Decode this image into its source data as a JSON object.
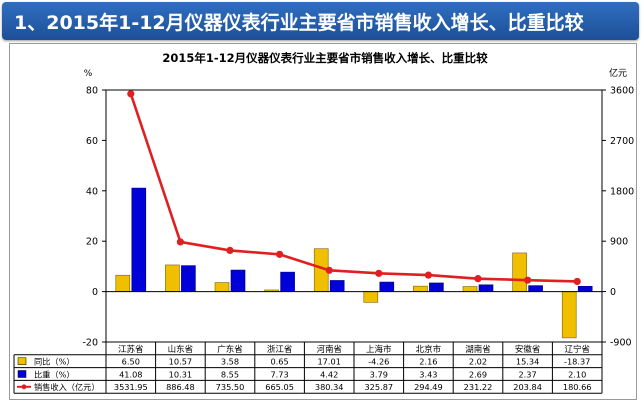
{
  "banner": {
    "title": "1、2015年1-12月仪器仪表行业主要省市销售收入增长、比重比较"
  },
  "colors": {
    "banner": "#2a64b4",
    "yoy": "#f0c000",
    "share": "#0000d8",
    "sales": "#e02020"
  },
  "chart_data": {
    "type": "bar",
    "title": "2015年1-12月仪器仪表行业主要省市销售收入增长、比重比较",
    "y_left_unit": "%",
    "y_right_unit": "亿元",
    "y_left_ticks": [
      "80",
      "60",
      "40",
      "20",
      "0",
      "-20"
    ],
    "y_right_ticks": [
      "3600",
      "2700",
      "1800",
      "900",
      "0",
      "-900"
    ],
    "ylim_left": [
      -20,
      80
    ],
    "ylim_right": [
      -900,
      3600
    ],
    "categories": [
      "江苏省",
      "山东省",
      "广东省",
      "浙江省",
      "河南省",
      "上海市",
      "北京市",
      "湖南省",
      "安徽省",
      "辽宁省"
    ],
    "series": [
      {
        "name": "同比（%）",
        "type": "bar",
        "axis": "left",
        "values": [
          6.5,
          10.57,
          3.58,
          0.65,
          17.01,
          -4.26,
          2.16,
          2.02,
          15.34,
          -18.37
        ],
        "labels": [
          "6.50",
          "10.57",
          "3.58",
          "0.65",
          "17.01",
          "-4.26",
          "2.16",
          "2.02",
          "15.34",
          "-18.37"
        ]
      },
      {
        "name": "比重（%）",
        "type": "bar",
        "axis": "left",
        "values": [
          41.08,
          10.31,
          8.55,
          7.73,
          4.42,
          3.79,
          3.43,
          2.69,
          2.37,
          2.1
        ],
        "labels": [
          "41.08",
          "10.31",
          "8.55",
          "7.73",
          "4.42",
          "3.79",
          "3.43",
          "2.69",
          "2.37",
          "2.10"
        ]
      },
      {
        "name": "销售收入（亿元）",
        "type": "line",
        "axis": "right",
        "values": [
          3531.95,
          886.48,
          735.5,
          665.05,
          380.34,
          325.87,
          294.49,
          231.22,
          203.84,
          180.66
        ],
        "labels": [
          "3531.95",
          "886.48",
          "735.50",
          "665.05",
          "380.34",
          "325.87",
          "294.49",
          "231.22",
          "203.84",
          "180.66"
        ]
      }
    ]
  }
}
